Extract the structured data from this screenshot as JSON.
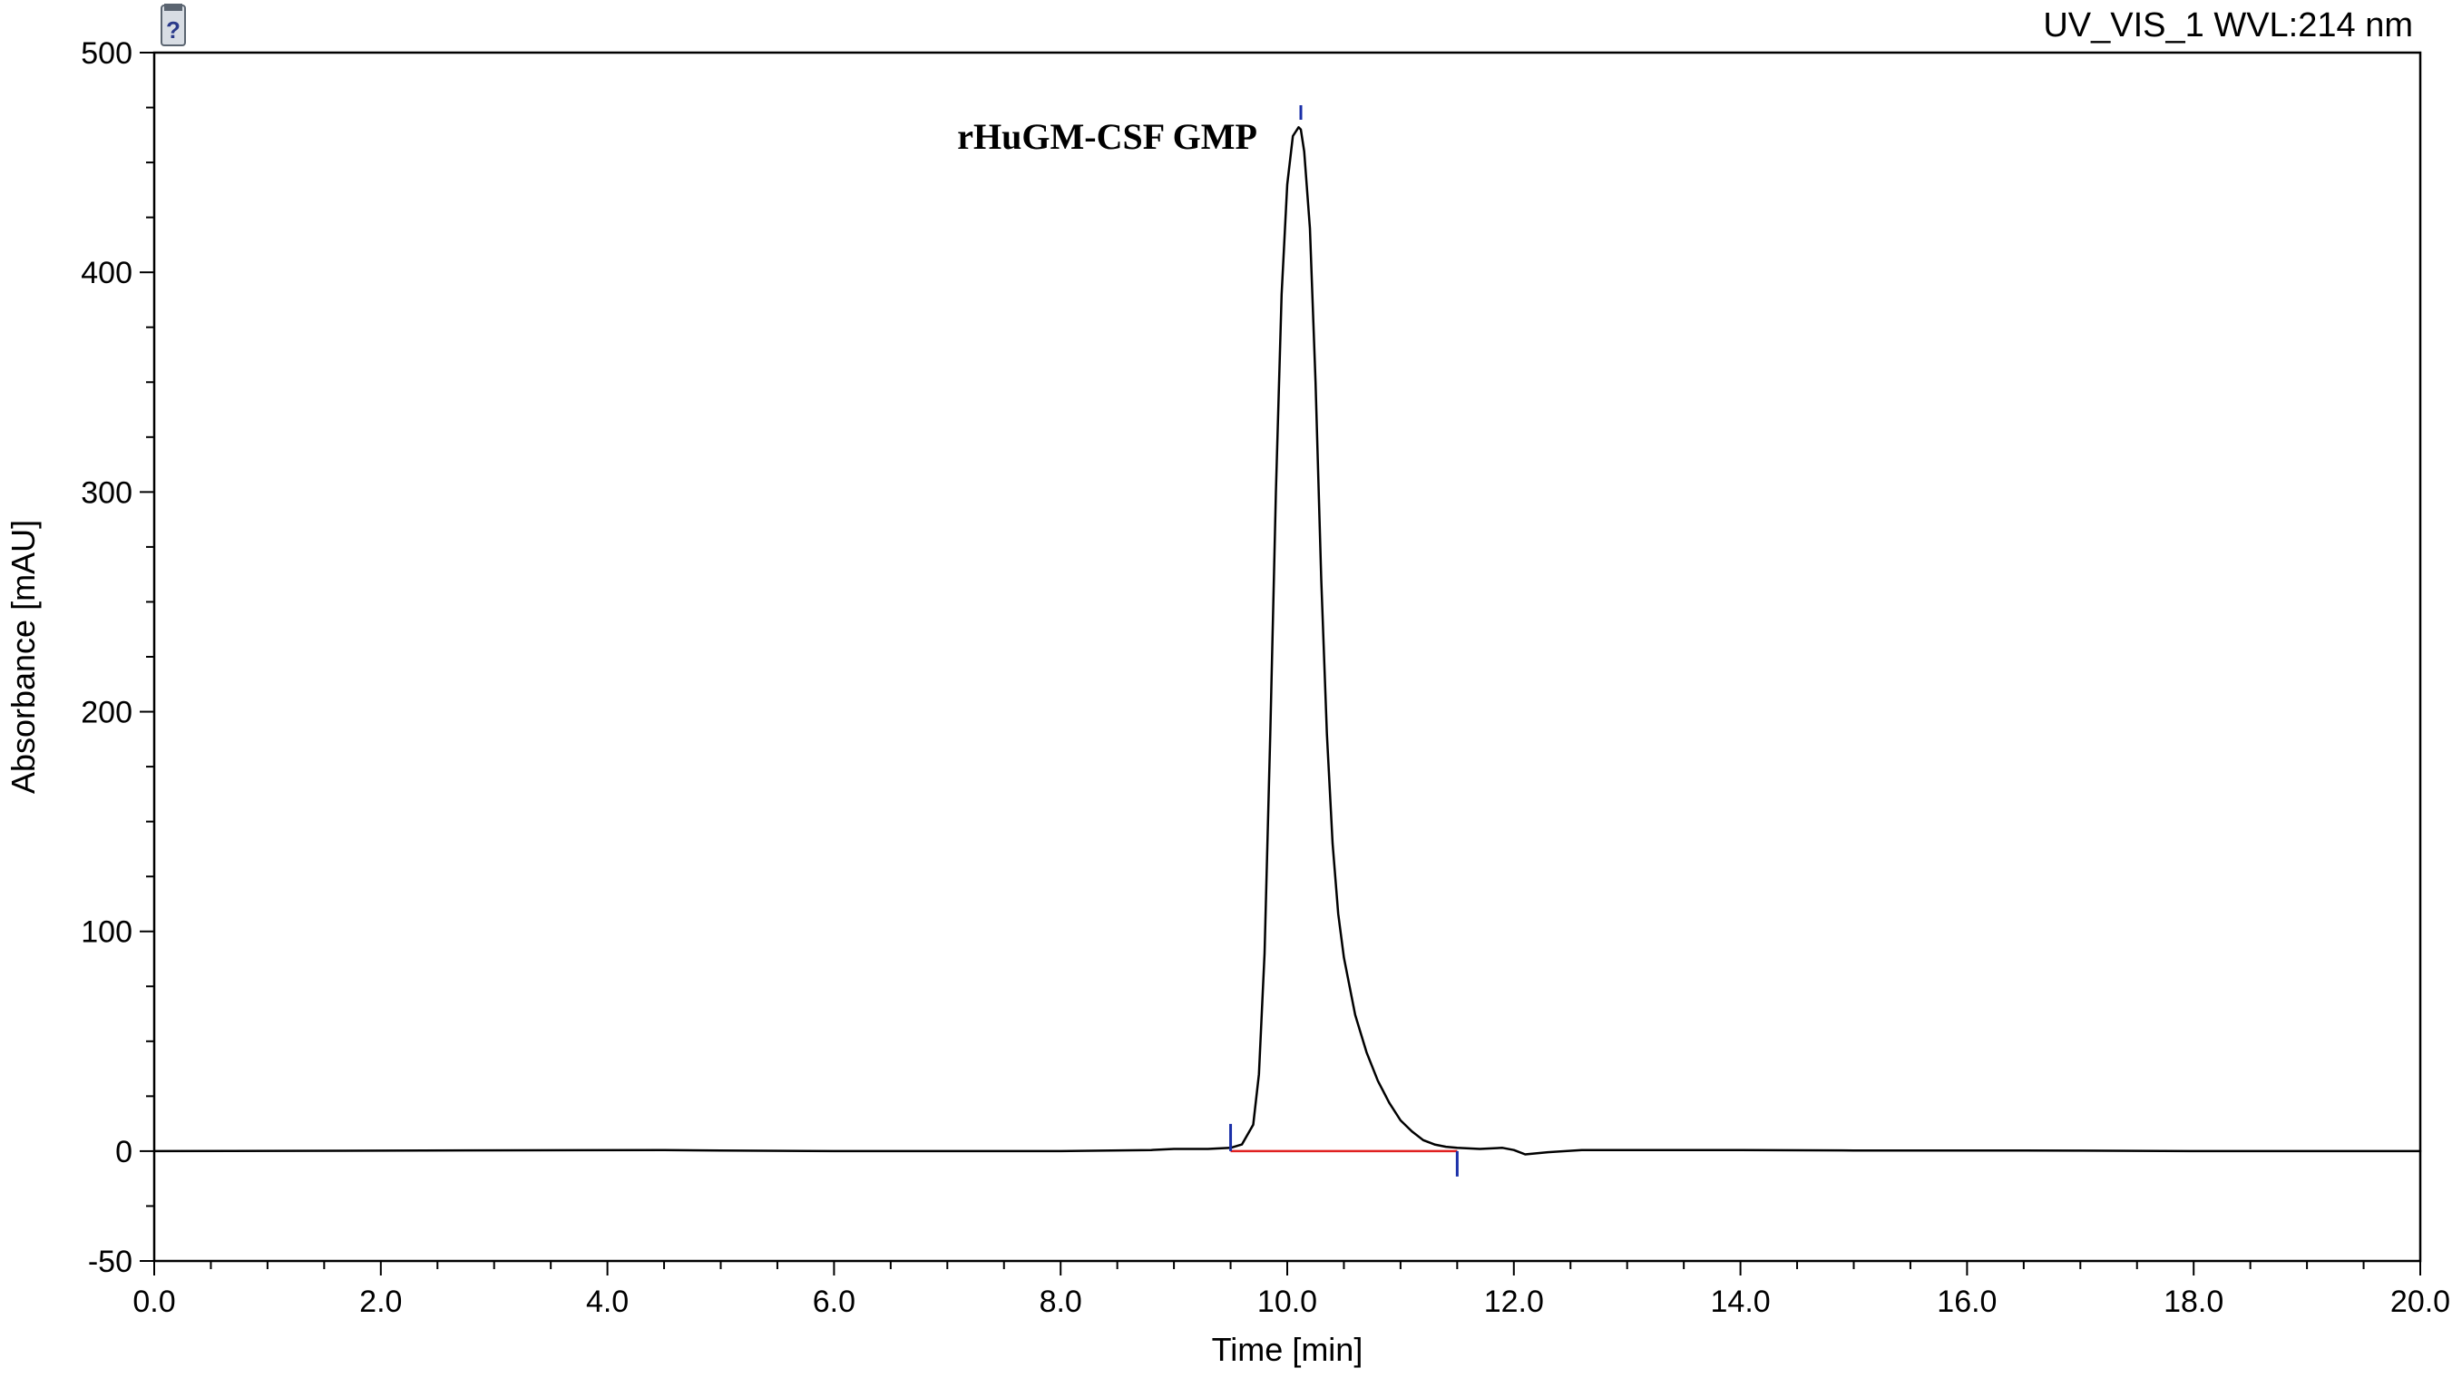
{
  "header": {
    "channel_label": "UV_VIS_1 WVL:214 nm",
    "icon": "chromatogram-file-icon"
  },
  "chart_data": {
    "type": "line",
    "title": "",
    "xlabel": "Time [min]",
    "ylabel": "Absorbance [mAU]",
    "xlim": [
      0.0,
      20.0
    ],
    "ylim": [
      -50,
      500
    ],
    "x_ticks": [
      "0.0",
      "2.0",
      "4.0",
      "6.0",
      "8.0",
      "10.0",
      "12.0",
      "14.0",
      "16.0",
      "18.0",
      "20.0"
    ],
    "y_ticks": [
      "-50",
      "0",
      "100",
      "200",
      "300",
      "400",
      "500"
    ],
    "grid": false,
    "legend": "none",
    "colors": {
      "trace": "#000000",
      "baseline": "#e02020",
      "markers": "#1a2fa8"
    },
    "series": [
      {
        "x": [
          0.0,
          4.5,
          5.0,
          6.0,
          7.0,
          8.0,
          8.8,
          9.0,
          9.3,
          9.5,
          9.6,
          9.7,
          9.75,
          9.8,
          9.85,
          9.9,
          9.95,
          10.0,
          10.05,
          10.1,
          10.12,
          10.15,
          10.2,
          10.25,
          10.3,
          10.35,
          10.4,
          10.45,
          10.5,
          10.6,
          10.7,
          10.8,
          10.9,
          11.0,
          11.1,
          11.2,
          11.3,
          11.4,
          11.5,
          11.7,
          11.9,
          12.0,
          12.1,
          12.3,
          12.6,
          13.0,
          14.0,
          15.0,
          16.0,
          16.5,
          17.0,
          18.0,
          19.0,
          20.0
        ],
        "y": [
          0,
          0.5,
          0.3,
          0,
          0,
          0,
          0.5,
          1,
          1,
          1.5,
          3,
          12,
          35,
          90,
          190,
          300,
          390,
          440,
          462,
          466,
          465,
          455,
          420,
          350,
          260,
          190,
          140,
          108,
          88,
          62,
          45,
          32,
          22,
          14,
          9,
          5,
          3,
          2,
          1.5,
          1,
          1.5,
          0.5,
          -1.5,
          -0.5,
          0.5,
          0.5,
          0.5,
          0.3,
          0.3,
          0.3,
          0.2,
          0,
          0,
          0
        ]
      }
    ],
    "integration": {
      "baseline_start": [
        9.5,
        0
      ],
      "baseline_end": [
        11.5,
        0
      ],
      "peak_start_marker": 9.5,
      "peak_apex_marker": 10.12,
      "peak_end_marker": 11.5
    },
    "annotations": [
      {
        "text": "rHuGM-CSF GMP",
        "x": 10.12,
        "y": 466
      }
    ]
  }
}
